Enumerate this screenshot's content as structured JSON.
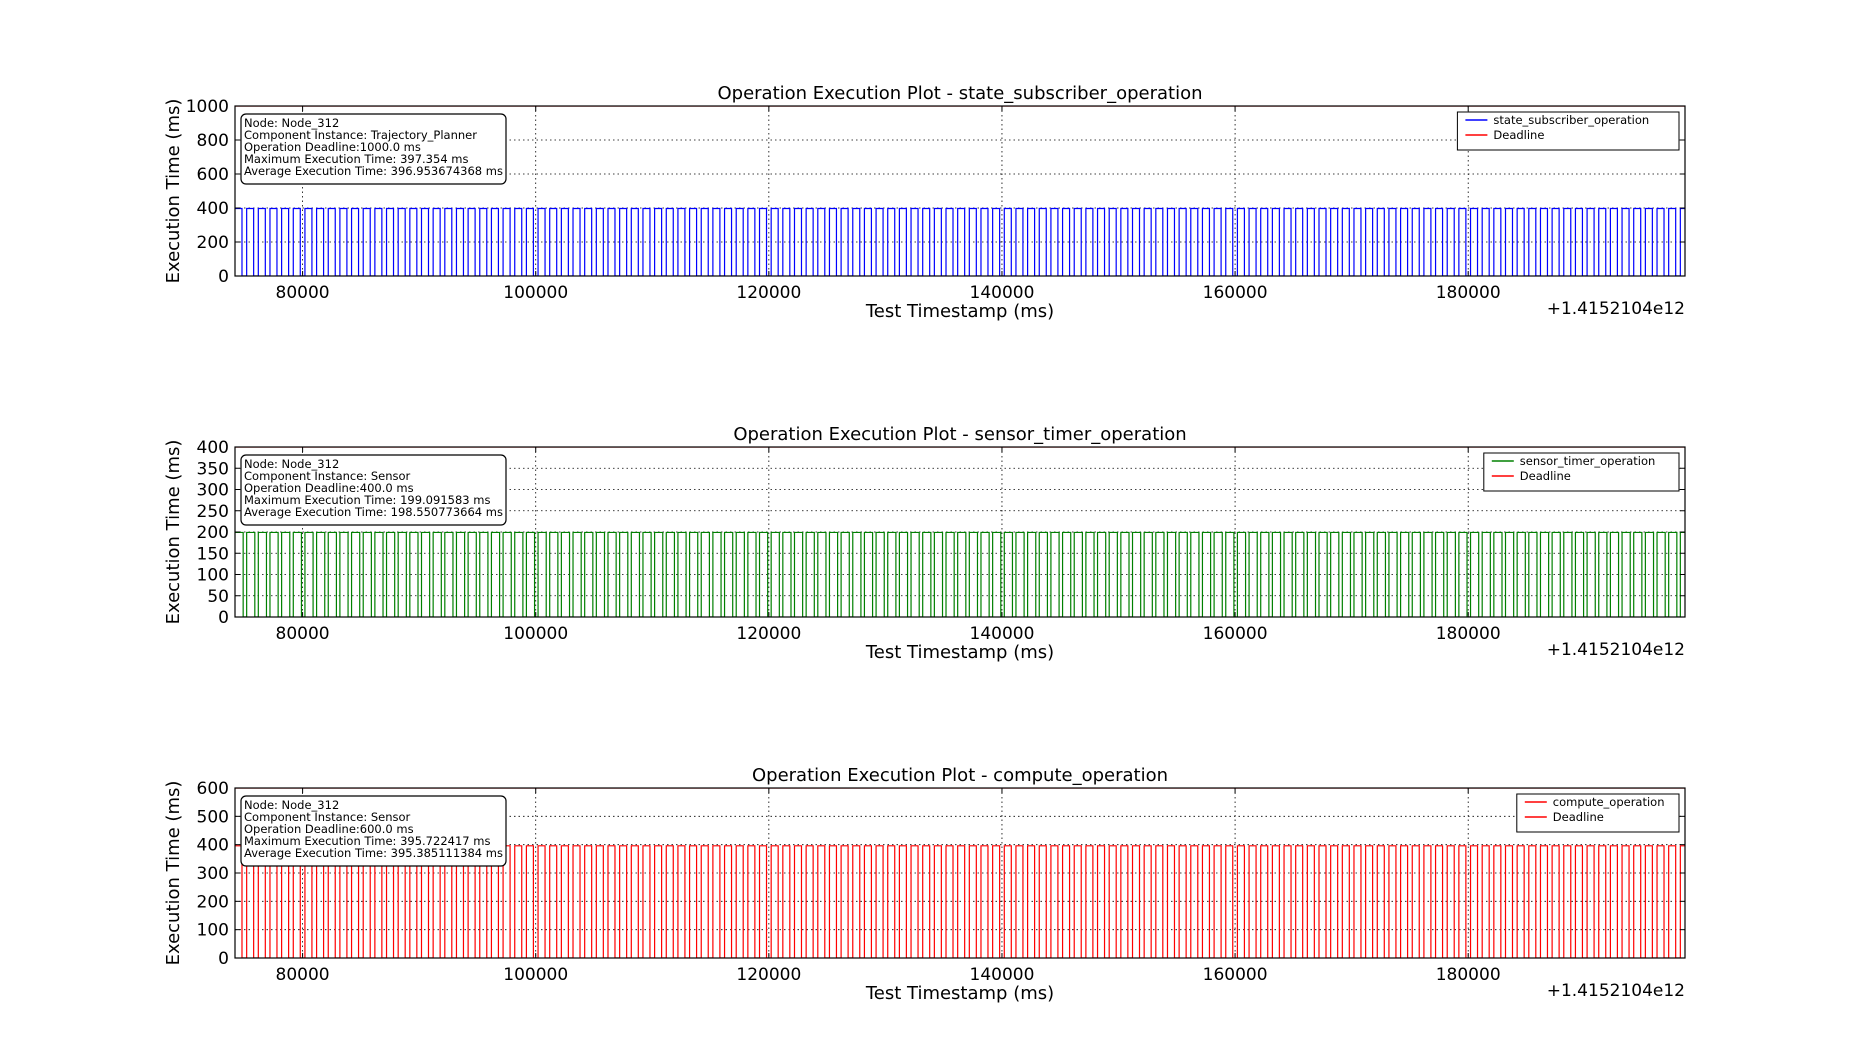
{
  "figure": {
    "background": "#ffffff"
  },
  "chart_data": [
    {
      "type": "line",
      "drawstyle": "steps",
      "title": "Operation Execution Plot - state_subscriber_operation",
      "xlabel": "Test Timestamp (ms)",
      "ylabel": "Execution Time (ms)",
      "x_offset_label": "+1.4152104e12",
      "xlim": [
        74200,
        198600
      ],
      "ylim": [
        0,
        1000
      ],
      "xticks": [
        80000,
        100000,
        120000,
        140000,
        160000,
        180000
      ],
      "xtick_labels": [
        "80000",
        "100000",
        "120000",
        "140000",
        "160000",
        "180000"
      ],
      "yticks": [
        0,
        200,
        400,
        600,
        800,
        1000
      ],
      "ytick_labels": [
        "0",
        "200",
        "400",
        "600",
        "800",
        "1000"
      ],
      "grid": true,
      "legend_position": "top-right",
      "info_box": [
        "Node: Node_312",
        "Component Instance: Trajectory_Planner",
        "Operation Deadline:1000.0 ms",
        "Maximum Execution Time: 397.354 ms",
        "Average Execution Time: 396.953674368 ms"
      ],
      "series": [
        {
          "name": "state_subscriber_operation",
          "color": "#0000ff",
          "pattern": {
            "x_start": 74200,
            "x_end": 198600,
            "period": 1000,
            "high_duration": 600,
            "high_value": 397
          }
        },
        {
          "name": "Deadline",
          "color": "#ff0000",
          "constant": 1000
        }
      ]
    },
    {
      "type": "line",
      "drawstyle": "steps",
      "title": "Operation Execution Plot - sensor_timer_operation",
      "xlabel": "Test Timestamp (ms)",
      "ylabel": "Execution Time (ms)",
      "x_offset_label": "+1.4152104e12",
      "xlim": [
        74200,
        198600
      ],
      "ylim": [
        0,
        400
      ],
      "xticks": [
        80000,
        100000,
        120000,
        140000,
        160000,
        180000
      ],
      "xtick_labels": [
        "80000",
        "100000",
        "120000",
        "140000",
        "160000",
        "180000"
      ],
      "yticks": [
        0,
        50,
        100,
        150,
        200,
        250,
        300,
        350,
        400
      ],
      "ytick_labels": [
        "0",
        "50",
        "100",
        "150",
        "200",
        "250",
        "300",
        "350",
        "400"
      ],
      "grid": true,
      "legend_position": "top-right",
      "info_box": [
        "Node: Node_312",
        "Component Instance: Sensor",
        "Operation Deadline:400.0 ms",
        "Maximum Execution Time: 199.091583 ms",
        "Average Execution Time: 198.550773664 ms"
      ],
      "series": [
        {
          "name": "sensor_timer_operation",
          "color": "#008000",
          "pattern": {
            "x_start": 74200,
            "x_end": 198600,
            "period": 1000,
            "high_duration": 700,
            "high_value": 199
          }
        },
        {
          "name": "Deadline",
          "color": "#ff0000",
          "constant": 400
        }
      ]
    },
    {
      "type": "line",
      "drawstyle": "steps",
      "title": "Operation Execution Plot - compute_operation",
      "xlabel": "Test Timestamp (ms)",
      "ylabel": "Execution Time (ms)",
      "x_offset_label": "+1.4152104e12",
      "xlim": [
        74200,
        198600
      ],
      "ylim": [
        0,
        600
      ],
      "xticks": [
        80000,
        100000,
        120000,
        140000,
        160000,
        180000
      ],
      "xtick_labels": [
        "80000",
        "100000",
        "120000",
        "140000",
        "160000",
        "180000"
      ],
      "yticks": [
        0,
        100,
        200,
        300,
        400,
        500,
        600
      ],
      "ytick_labels": [
        "0",
        "100",
        "200",
        "300",
        "400",
        "500",
        "600"
      ],
      "grid": true,
      "legend_position": "top-right",
      "info_box": [
        "Node: Node_312",
        "Component Instance: Sensor",
        "Operation Deadline:600.0 ms",
        "Maximum Execution Time: 395.722417 ms",
        "Average Execution Time: 395.385111384 ms"
      ],
      "series": [
        {
          "name": "compute_operation",
          "color": "#ff0000",
          "pattern": {
            "x_start": 74200,
            "x_end": 198600,
            "period": 1000,
            "high_duration": 600,
            "high_value": 396
          }
        },
        {
          "name": "Deadline",
          "color": "#ff0000",
          "constant": 600
        }
      ]
    }
  ]
}
